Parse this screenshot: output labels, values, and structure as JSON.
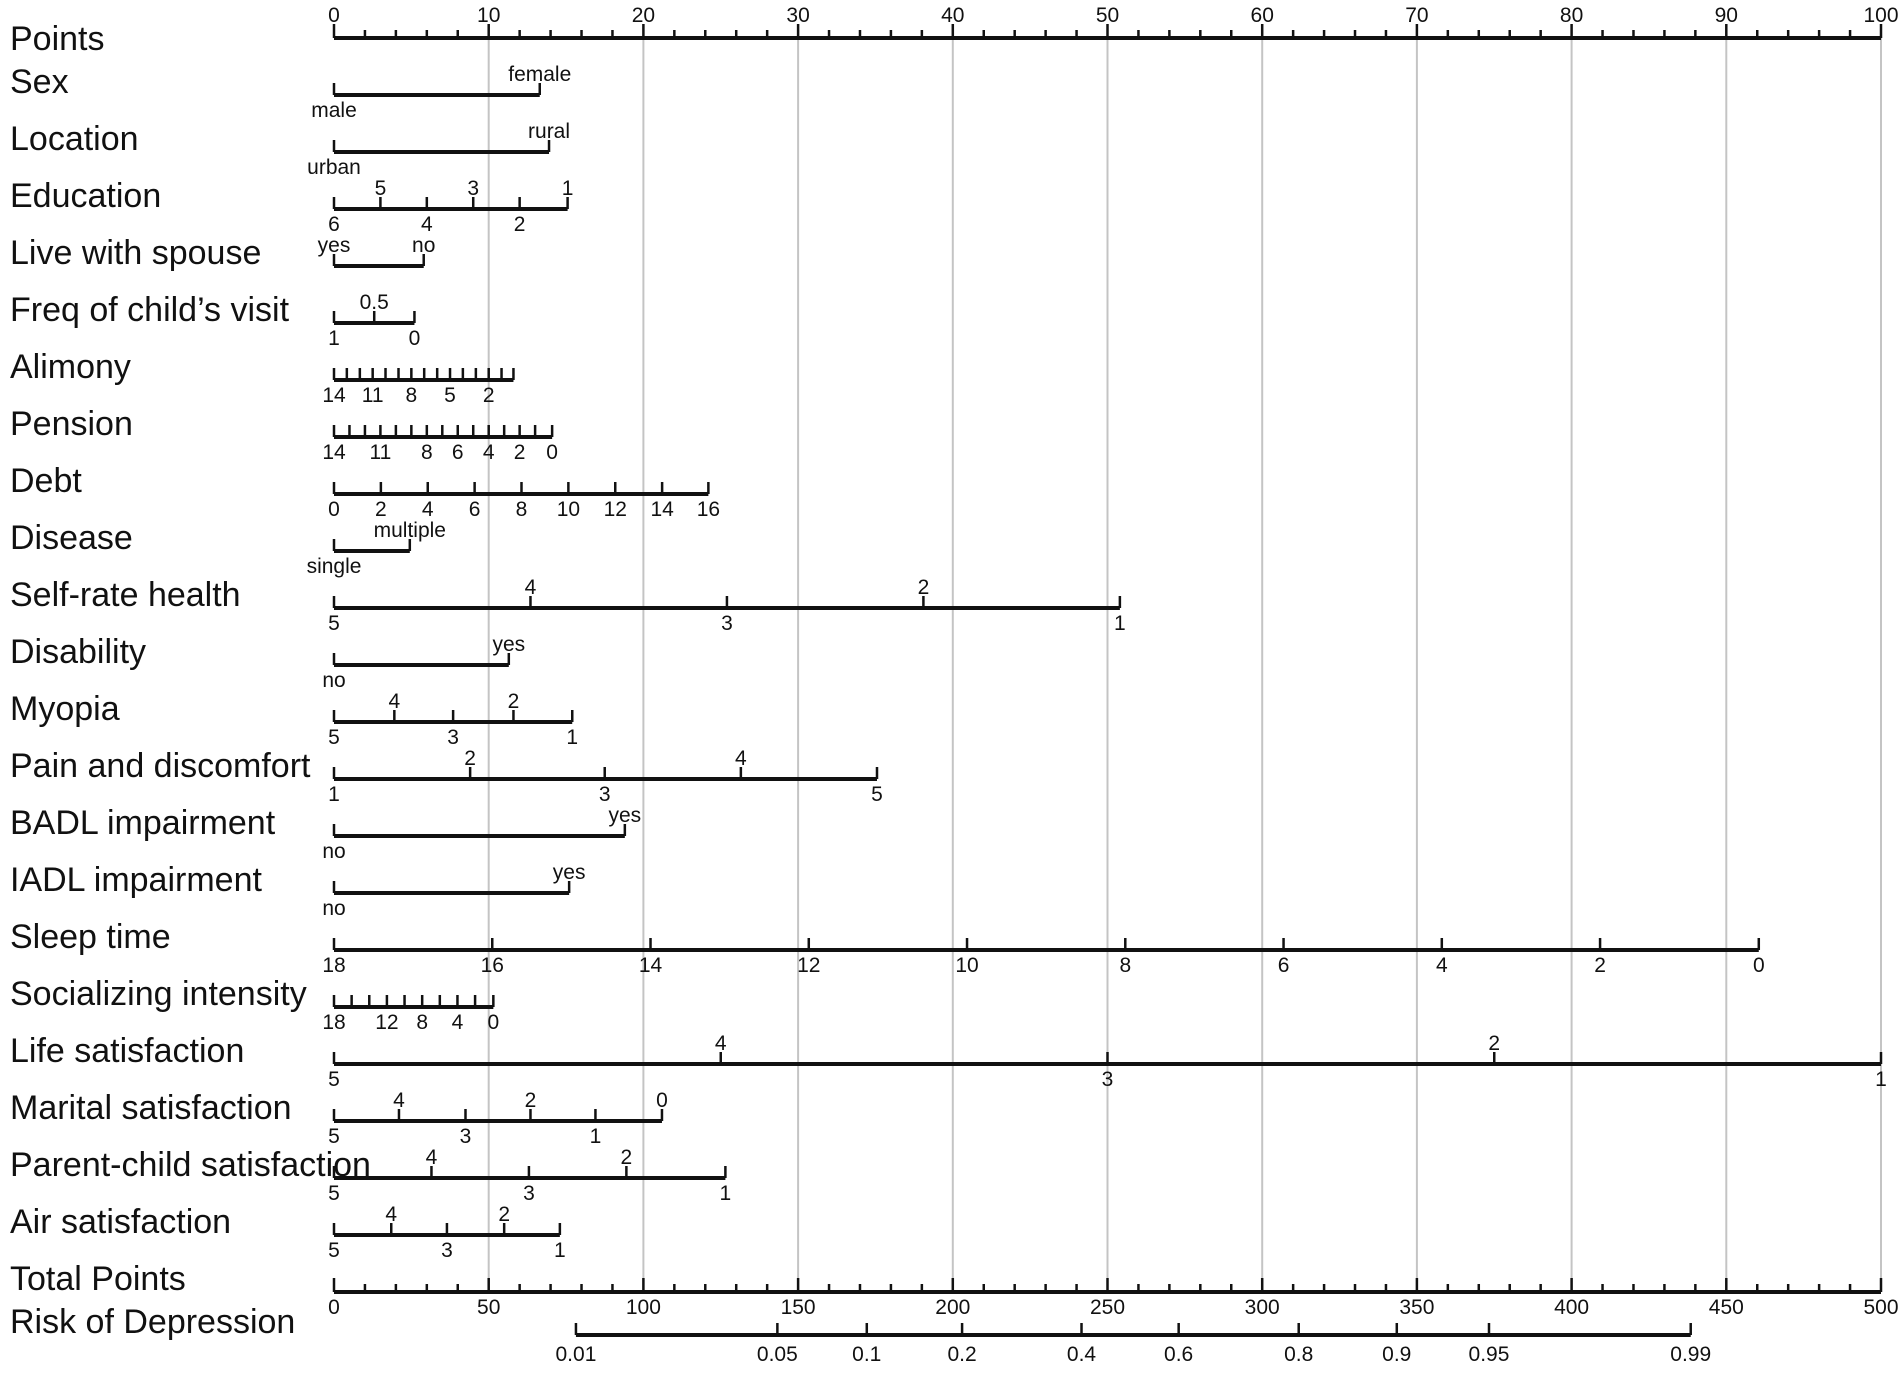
{
  "chart_data": {
    "type": "nomogram",
    "title": "",
    "points_axis": {
      "label": "Points",
      "min": 0,
      "max": 100,
      "major_ticks": [
        0,
        10,
        20,
        30,
        40,
        50,
        60,
        70,
        80,
        90,
        100
      ],
      "minor_step": 2
    },
    "variables": [
      {
        "name": "Sex",
        "ticks": [
          {
            "label": "male",
            "points": 0,
            "side": "below"
          },
          {
            "label": "female",
            "points": 13.3,
            "side": "above"
          }
        ]
      },
      {
        "name": "Location",
        "ticks": [
          {
            "label": "urban",
            "points": 0,
            "side": "below"
          },
          {
            "label": "rural",
            "points": 13.9,
            "side": "above"
          }
        ]
      },
      {
        "name": "Education",
        "ticks": [
          {
            "label": "6",
            "points": 0,
            "side": "below"
          },
          {
            "label": "5",
            "points": 3.0,
            "side": "above"
          },
          {
            "label": "4",
            "points": 6.0,
            "side": "below"
          },
          {
            "label": "3",
            "points": 9.0,
            "side": "above"
          },
          {
            "label": "2",
            "points": 12.0,
            "side": "below"
          },
          {
            "label": "1",
            "points": 15.1,
            "side": "above"
          }
        ]
      },
      {
        "name": "Live with spouse",
        "ticks": [
          {
            "label": "yes",
            "points": 0,
            "side": "above"
          },
          {
            "label": "no",
            "points": 5.8,
            "side": "above"
          }
        ]
      },
      {
        "name": "Freq of child’s visit",
        "ticks": [
          {
            "label": "1",
            "points": 0,
            "side": "below"
          },
          {
            "label": "0.5",
            "points": 2.6,
            "side": "above"
          },
          {
            "label": "0",
            "points": 5.2,
            "side": "below"
          }
        ]
      },
      {
        "name": "Alimony",
        "ticks": [
          {
            "label": "14",
            "points": 0,
            "side": "below"
          },
          {
            "label": "",
            "points": 0.83,
            "side": "below"
          },
          {
            "label": "",
            "points": 1.67,
            "side": "below"
          },
          {
            "label": "11",
            "points": 2.5,
            "side": "below"
          },
          {
            "label": "",
            "points": 3.33,
            "side": "below"
          },
          {
            "label": "",
            "points": 4.17,
            "side": "below"
          },
          {
            "label": "8",
            "points": 5.0,
            "side": "below"
          },
          {
            "label": "",
            "points": 5.83,
            "side": "below"
          },
          {
            "label": "",
            "points": 6.67,
            "side": "below"
          },
          {
            "label": "5",
            "points": 7.5,
            "side": "below"
          },
          {
            "label": "",
            "points": 8.33,
            "side": "below"
          },
          {
            "label": "",
            "points": 9.17,
            "side": "below"
          },
          {
            "label": "2",
            "points": 10.0,
            "side": "below"
          },
          {
            "label": "",
            "points": 10.83,
            "side": "below"
          },
          {
            "label": "",
            "points": 11.6,
            "side": "below"
          }
        ]
      },
      {
        "name": "Pension",
        "ticks": [
          {
            "label": "14",
            "points": 0,
            "side": "below"
          },
          {
            "label": "",
            "points": 1.0,
            "side": "below"
          },
          {
            "label": "",
            "points": 2.0,
            "side": "below"
          },
          {
            "label": "11",
            "points": 3.0,
            "side": "below"
          },
          {
            "label": "",
            "points": 4.0,
            "side": "below"
          },
          {
            "label": "",
            "points": 5.0,
            "side": "below"
          },
          {
            "label": "8",
            "points": 6.0,
            "side": "below"
          },
          {
            "label": "",
            "points": 7.0,
            "side": "below"
          },
          {
            "label": "6",
            "points": 8.0,
            "side": "below"
          },
          {
            "label": "",
            "points": 9.0,
            "side": "below"
          },
          {
            "label": "4",
            "points": 10.0,
            "side": "below"
          },
          {
            "label": "",
            "points": 11.0,
            "side": "below"
          },
          {
            "label": "2",
            "points": 12.0,
            "side": "below"
          },
          {
            "label": "",
            "points": 13.0,
            "side": "below"
          },
          {
            "label": "0",
            "points": 14.1,
            "side": "below"
          }
        ]
      },
      {
        "name": "Debt",
        "ticks": [
          {
            "label": "0",
            "points": 0,
            "side": "below"
          },
          {
            "label": "2",
            "points": 3.03,
            "side": "below"
          },
          {
            "label": "4",
            "points": 6.06,
            "side": "below"
          },
          {
            "label": "6",
            "points": 9.09,
            "side": "below"
          },
          {
            "label": "8",
            "points": 12.12,
            "side": "below"
          },
          {
            "label": "10",
            "points": 15.15,
            "side": "below"
          },
          {
            "label": "12",
            "points": 18.18,
            "side": "below"
          },
          {
            "label": "14",
            "points": 21.21,
            "side": "below"
          },
          {
            "label": "16",
            "points": 24.2,
            "side": "below"
          }
        ]
      },
      {
        "name": "Disease",
        "ticks": [
          {
            "label": "single",
            "points": 0,
            "side": "below"
          },
          {
            "label": "multiple",
            "points": 4.9,
            "side": "above"
          }
        ]
      },
      {
        "name": "Self-rate health",
        "ticks": [
          {
            "label": "5",
            "points": 0,
            "side": "below"
          },
          {
            "label": "4",
            "points": 12.7,
            "side": "above"
          },
          {
            "label": "3",
            "points": 25.4,
            "side": "below"
          },
          {
            "label": "2",
            "points": 38.1,
            "side": "above"
          },
          {
            "label": "1",
            "points": 50.8,
            "side": "below"
          }
        ]
      },
      {
        "name": "Disability",
        "ticks": [
          {
            "label": "no",
            "points": 0,
            "side": "below"
          },
          {
            "label": "yes",
            "points": 11.3,
            "side": "above"
          }
        ]
      },
      {
        "name": "Myopia",
        "ticks": [
          {
            "label": "5",
            "points": 0,
            "side": "below"
          },
          {
            "label": "4",
            "points": 3.9,
            "side": "above"
          },
          {
            "label": "3",
            "points": 7.7,
            "side": "below"
          },
          {
            "label": "2",
            "points": 11.6,
            "side": "above"
          },
          {
            "label": "1",
            "points": 15.4,
            "side": "below"
          }
        ]
      },
      {
        "name": "Pain and discomfort",
        "ticks": [
          {
            "label": "1",
            "points": 0,
            "side": "below"
          },
          {
            "label": "2",
            "points": 8.8,
            "side": "above"
          },
          {
            "label": "3",
            "points": 17.5,
            "side": "below"
          },
          {
            "label": "4",
            "points": 26.3,
            "side": "above"
          },
          {
            "label": "5",
            "points": 35.1,
            "side": "below"
          }
        ]
      },
      {
        "name": "BADL impairment",
        "ticks": [
          {
            "label": "no",
            "points": 0,
            "side": "below"
          },
          {
            "label": "yes",
            "points": 18.8,
            "side": "above"
          }
        ]
      },
      {
        "name": "IADL impairment",
        "ticks": [
          {
            "label": "no",
            "points": 0,
            "side": "below"
          },
          {
            "label": "yes",
            "points": 15.2,
            "side": "above"
          }
        ]
      },
      {
        "name": "Sleep time",
        "ticks": [
          {
            "label": "18",
            "points": 0,
            "side": "below"
          },
          {
            "label": "16",
            "points": 10.23,
            "side": "below"
          },
          {
            "label": "14",
            "points": 20.46,
            "side": "below"
          },
          {
            "label": "12",
            "points": 30.69,
            "side": "below"
          },
          {
            "label": "10",
            "points": 40.92,
            "side": "below"
          },
          {
            "label": "8",
            "points": 51.15,
            "side": "below"
          },
          {
            "label": "6",
            "points": 61.38,
            "side": "below"
          },
          {
            "label": "4",
            "points": 71.61,
            "side": "below"
          },
          {
            "label": "2",
            "points": 81.84,
            "side": "below"
          },
          {
            "label": "0",
            "points": 92.1,
            "side": "below"
          }
        ]
      },
      {
        "name": "Socializing intensity",
        "ticks": [
          {
            "label": "18",
            "points": 0,
            "side": "below"
          },
          {
            "label": "",
            "points": 1.14,
            "side": "below"
          },
          {
            "label": "",
            "points": 2.28,
            "side": "below"
          },
          {
            "label": "12",
            "points": 3.42,
            "side": "below"
          },
          {
            "label": "",
            "points": 4.56,
            "side": "below"
          },
          {
            "label": "8",
            "points": 5.7,
            "side": "below"
          },
          {
            "label": "",
            "points": 6.84,
            "side": "below"
          },
          {
            "label": "4",
            "points": 7.98,
            "side": "below"
          },
          {
            "label": "",
            "points": 9.12,
            "side": "below"
          },
          {
            "label": "0",
            "points": 10.3,
            "side": "below"
          }
        ]
      },
      {
        "name": "Life satisfaction",
        "ticks": [
          {
            "label": "5",
            "points": 0,
            "side": "below"
          },
          {
            "label": "4",
            "points": 25.0,
            "side": "above"
          },
          {
            "label": "3",
            "points": 50.0,
            "side": "below"
          },
          {
            "label": "2",
            "points": 75.0,
            "side": "above"
          },
          {
            "label": "1",
            "points": 100.0,
            "side": "below"
          }
        ]
      },
      {
        "name": "Marital satisfaction",
        "ticks": [
          {
            "label": "5",
            "points": 0,
            "side": "below"
          },
          {
            "label": "4",
            "points": 4.2,
            "side": "above"
          },
          {
            "label": "3",
            "points": 8.5,
            "side": "below"
          },
          {
            "label": "2",
            "points": 12.7,
            "side": "above"
          },
          {
            "label": "1",
            "points": 16.9,
            "side": "below"
          },
          {
            "label": "0",
            "points": 21.2,
            "side": "above"
          }
        ]
      },
      {
        "name": "Parent-child satisfaction",
        "ticks": [
          {
            "label": "5",
            "points": 0,
            "side": "below"
          },
          {
            "label": "4",
            "points": 6.3,
            "side": "above"
          },
          {
            "label": "3",
            "points": 12.6,
            "side": "below"
          },
          {
            "label": "2",
            "points": 18.9,
            "side": "above"
          },
          {
            "label": "1",
            "points": 25.3,
            "side": "below"
          }
        ]
      },
      {
        "name": "Air satisfaction",
        "ticks": [
          {
            "label": "5",
            "points": 0,
            "side": "below"
          },
          {
            "label": "4",
            "points": 3.7,
            "side": "above"
          },
          {
            "label": "3",
            "points": 7.3,
            "side": "below"
          },
          {
            "label": "2",
            "points": 11.0,
            "side": "above"
          },
          {
            "label": "1",
            "points": 14.6,
            "side": "below"
          }
        ]
      }
    ],
    "total_points_axis": {
      "label": "Total Points",
      "min": 0,
      "max": 500,
      "ticks": [
        0,
        50,
        100,
        150,
        200,
        250,
        300,
        350,
        400,
        450,
        500
      ],
      "minor_step": 10
    },
    "risk_axis": {
      "label": "Risk of Depression",
      "ticks": [
        {
          "label": "0.01",
          "total_points": 78.2
        },
        {
          "label": "0.05",
          "total_points": 143.3
        },
        {
          "label": "0.1",
          "total_points": 172.2
        },
        {
          "label": "0.2",
          "total_points": 203.0
        },
        {
          "label": "0.4",
          "total_points": 241.6
        },
        {
          "label": "0.6",
          "total_points": 273.0
        },
        {
          "label": "0.8",
          "total_points": 311.8
        },
        {
          "label": "0.9",
          "total_points": 343.5
        },
        {
          "label": "0.95",
          "total_points": 373.3
        },
        {
          "label": "0.99",
          "total_points": 438.5
        }
      ]
    },
    "grid": true
  }
}
